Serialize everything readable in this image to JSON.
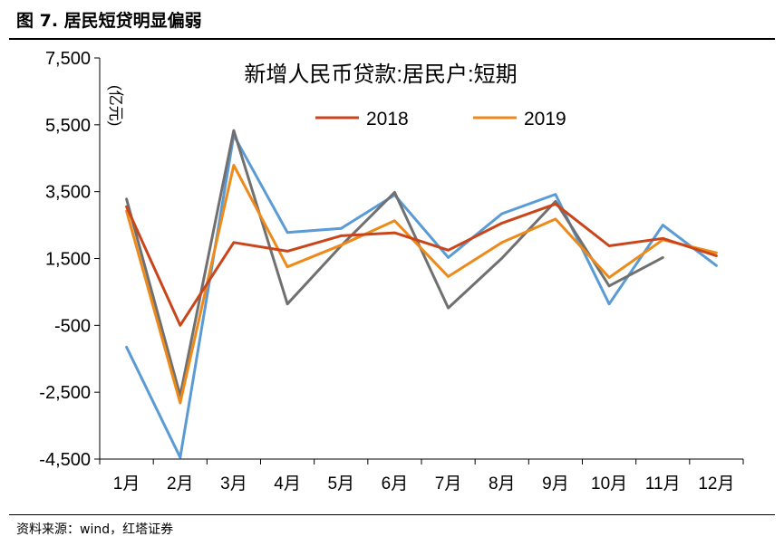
{
  "figure": {
    "title": "图 7. 居民短贷明显偏弱",
    "source": "资料来源：wind，红塔证券"
  },
  "chart_data": {
    "type": "line",
    "title": "新增人民币贷款:居民户:短期",
    "ylabel": "(亿元)",
    "xlabel": "",
    "categories": [
      "1月",
      "2月",
      "3月",
      "4月",
      "5月",
      "6月",
      "7月",
      "8月",
      "9月",
      "10月",
      "11月",
      "12月"
    ],
    "y_ticks": [
      "7,500",
      "5,500",
      "3,500",
      "1,500",
      "-500",
      "-2,500",
      "-4,500"
    ],
    "ylim": [
      -4500,
      7500
    ],
    "grid": false,
    "legend_position": "top-center",
    "series": [
      {
        "name": "2018",
        "color": "#C9461C",
        "in_legend": true,
        "values": [
          3050,
          -500,
          1980,
          1720,
          2180,
          2270,
          1750,
          2560,
          3130,
          1880,
          2100,
          1580
        ]
      },
      {
        "name": "2019",
        "color": "#EE8A1A",
        "in_legend": true,
        "values": [
          2920,
          -2820,
          4290,
          1250,
          1900,
          2630,
          960,
          1980,
          2680,
          930,
          2060,
          1670
        ]
      },
      {
        "name": "",
        "color": "#5B9BD5",
        "in_legend": false,
        "values": [
          -1150,
          -4450,
          5190,
          2280,
          2400,
          3400,
          1530,
          2840,
          3420,
          140,
          2500,
          1290
        ]
      },
      {
        "name": "",
        "color": "#707070",
        "in_legend": false,
        "values": [
          3280,
          -2600,
          5330,
          140,
          1880,
          3480,
          20,
          1510,
          3210,
          680,
          1530,
          null
        ]
      }
    ]
  }
}
